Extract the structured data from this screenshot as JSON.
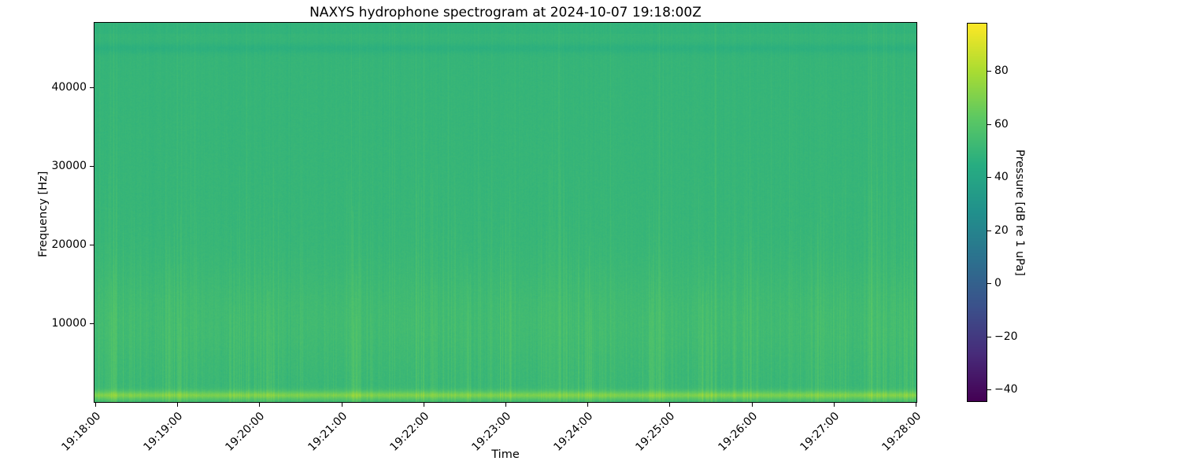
{
  "figure": {
    "background_color": "#ffffff",
    "text_color": "#000000"
  },
  "chart_data": {
    "type": "heatmap",
    "subtype": "spectrogram",
    "title": "NAXYS hydrophone spectrogram at 2024-10-07 19:18:00Z",
    "xlabel": "Time",
    "ylabel": "Frequency [Hz]",
    "x_tick_labels": [
      "19:18:00",
      "19:19:00",
      "19:20:00",
      "19:21:00",
      "19:22:00",
      "19:23:00",
      "19:24:00",
      "19:25:00",
      "19:26:00",
      "19:27:00",
      "19:28:00"
    ],
    "x_tick_rotation_deg": 45,
    "time_span_minutes": 10,
    "y_tick_values": [
      10000,
      20000,
      30000,
      40000
    ],
    "y_tick_labels": [
      "10000",
      "20000",
      "30000",
      "40000"
    ],
    "ylim": [
      0,
      48200
    ],
    "grid": false,
    "colormap": "viridis",
    "viridis_anchors": [
      "#440154",
      "#472c7a",
      "#3b518b",
      "#2c718e",
      "#21908c",
      "#27ad81",
      "#5cc863",
      "#aadc32",
      "#fde725"
    ],
    "colorbar": {
      "label": "Pressure [dB re 1 uPa]",
      "position": "right",
      "tick_values": [
        80,
        60,
        40,
        20,
        0,
        -20,
        -40
      ],
      "tick_labels": [
        "80",
        "60",
        "40",
        "20",
        "0",
        "−20",
        "−40"
      ],
      "vmin": -44.4,
      "vmax": 97.8
    },
    "heatmap_summary": {
      "background_level_db": 49.5,
      "features": [
        {
          "name": "low-frequency-bright-band",
          "freq_hz": [
            300,
            1600
          ],
          "peak_freq_hz": 900,
          "level_db": 66,
          "description": "bright light-green horizontal band just above the bottom edge"
        },
        {
          "name": "mid-frequency-brightening",
          "freq_hz": [
            4000,
            18000
          ],
          "peak_freq_hz": 10500,
          "level_db": 52.5,
          "description": "slightly brighter, densely striped region"
        },
        {
          "name": "high-frequency-dark-stripe",
          "freq_hz": [
            44300,
            45700
          ],
          "peak_freq_hz": 45000,
          "level_db": 46.5,
          "description": "subtle darker teal stripe near 45 kHz"
        },
        {
          "name": "vertical-transient-streaks",
          "level_db_range": [
            52,
            60
          ],
          "description": "narrow brighter vertical lines at irregular times, densest below 20 kHz"
        }
      ],
      "transient_cluster_time_fracs": [
        0.02,
        0.1,
        0.175,
        0.21,
        0.315,
        0.4,
        0.455,
        0.5,
        0.565,
        0.6,
        0.685,
        0.745,
        0.8,
        0.885,
        0.95,
        0.985
      ]
    }
  }
}
